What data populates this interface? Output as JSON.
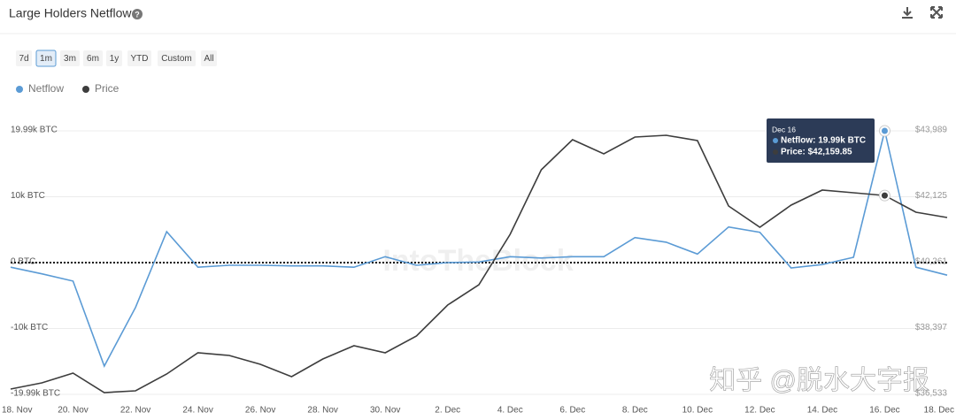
{
  "header": {
    "title": "Large Holders Netflow"
  },
  "controls": {
    "ranges": [
      "7d",
      "1m",
      "3m",
      "6m",
      "1y",
      "YTD",
      "Custom",
      "All"
    ],
    "selected": 1
  },
  "watermarks": [
    "IntoTheBlock",
    "知乎 @脱水大字报"
  ],
  "chart_data": {
    "type": "line",
    "title": "Large Holders Netflow",
    "categories": [
      "18. Nov",
      null,
      "20. Nov",
      null,
      "22. Nov",
      null,
      "24. Nov",
      null,
      "26. Nov",
      null,
      "28. Nov",
      null,
      "30. Nov",
      null,
      "2. Dec",
      null,
      "4. Dec",
      null,
      "6. Dec",
      null,
      "8. Dec",
      null,
      "10. Dec",
      null,
      "12. Dec",
      null,
      "14. Dec",
      null,
      "16. Dec",
      null,
      "18. Dec"
    ],
    "series": [
      {
        "name": "Netflow",
        "color": "#5b9bd5",
        "values": [
          -700,
          -1700,
          -2800,
          -15700,
          -6800,
          4700,
          -700,
          -400,
          -400,
          -500,
          -500,
          -700,
          900,
          -400,
          0,
          100,
          900,
          700,
          900,
          900,
          3800,
          3100,
          1300,
          5400,
          4600,
          -800,
          -300,
          800,
          19990,
          -700,
          -1900
        ]
      },
      {
        "name": "Price",
        "color": "#3d3d3d",
        "axis": "y2",
        "values": [
          36683,
          36858,
          37134,
          36583,
          36633,
          37108,
          37709,
          37634,
          37384,
          37033,
          37534,
          37909,
          37709,
          38184,
          39060,
          39636,
          41062,
          42888,
          43739,
          43338,
          43814,
          43864,
          43714,
          41862,
          41262,
          41887,
          42313,
          42238,
          42159.85,
          41687,
          41537
        ]
      }
    ],
    "ylim": [
      -19990,
      19990
    ],
    "yticks": [
      {
        "value": 19990,
        "label": "19.99k BTC"
      },
      {
        "value": 10000,
        "label": "10k BTC"
      },
      {
        "value": 0,
        "label": "0 BTC"
      },
      {
        "value": -10000,
        "label": "-10k BTC"
      },
      {
        "value": -19990,
        "label": "-19.99k BTC"
      }
    ],
    "y2lim": [
      36533,
      43989
    ],
    "y2ticks": [
      {
        "value": 43989,
        "label": "$43,989"
      },
      {
        "value": 42125,
        "label": "$42,125"
      },
      {
        "value": 40261,
        "label": "$40,261"
      },
      {
        "value": 38397,
        "label": "$38,397"
      },
      {
        "value": 36533,
        "label": "$36,533"
      }
    ],
    "grid": true,
    "zero_line": true,
    "legend": "top-left",
    "tooltip": {
      "index": 28,
      "title": "Dec 16",
      "lines": [
        "Netflow: 19.99k BTC",
        "Price: $42,159.85"
      ]
    }
  }
}
